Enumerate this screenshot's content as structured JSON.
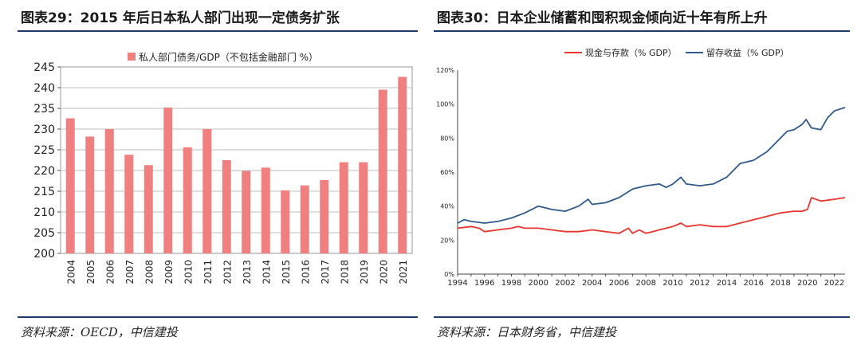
{
  "left": {
    "title": "图表29：2015 年后日本私人部门出现一定债务扩张",
    "source": "资料来源：OECD，中信建投"
  },
  "right": {
    "title": "图表30：日本企业储蓄和囤积现金倾向近十年有所上升",
    "source": "资料来源：日本财务省，中信建投"
  },
  "colors": {
    "bar": "#f08080",
    "red_line": "#e8352e",
    "blue_line": "#2f5a8c",
    "rule": "#1f3a68"
  },
  "chart_data": [
    {
      "type": "bar",
      "title": "",
      "legend": [
        "私人部门债务/GDP（不包括金融部门 %）"
      ],
      "categories": [
        "2004",
        "2005",
        "2006",
        "2007",
        "2008",
        "2009",
        "2010",
        "2011",
        "2012",
        "2013",
        "2014",
        "2015",
        "2016",
        "2017",
        "2018",
        "2019",
        "2020",
        "2021"
      ],
      "values": [
        232.6,
        228.2,
        230.0,
        223.8,
        221.3,
        235.2,
        225.6,
        230.0,
        222.5,
        219.9,
        220.7,
        215.2,
        216.4,
        217.7,
        222.0,
        222.0,
        239.5,
        242.6
      ],
      "yticks": [
        "200",
        "205",
        "210",
        "215",
        "220",
        "225",
        "230",
        "235",
        "240",
        "245"
      ],
      "ylim": [
        200,
        245
      ]
    },
    {
      "type": "line",
      "title": "",
      "legend": [
        "现金与存款（% GDP）",
        "留存收益（% GDP）"
      ],
      "xticks": [
        "1994",
        "1996",
        "1998",
        "2000",
        "2002",
        "2004",
        "2006",
        "2008",
        "2010",
        "2012",
        "2014",
        "2016",
        "2018",
        "2020",
        "2022"
      ],
      "yticks": [
        "0%",
        "20%",
        "40%",
        "60%",
        "80%",
        "100%",
        "120%"
      ],
      "xlim": [
        1994,
        2022.8
      ],
      "ylim": [
        0,
        120
      ],
      "series": [
        {
          "name": "现金与存款（% GDP）",
          "x": [
            1994,
            1995,
            1995.6,
            1996,
            1997,
            1998,
            1998.5,
            1999,
            2000,
            2001,
            2002,
            2003,
            2004,
            2005,
            2006,
            2006.7,
            2007,
            2007.5,
            2008,
            2008.5,
            2009,
            2010,
            2010.6,
            2011,
            2012,
            2013,
            2014,
            2015,
            2016,
            2017,
            2018,
            2019,
            2019.6,
            2020,
            2020.3,
            2021,
            2022,
            2022.8
          ],
          "y": [
            27,
            28,
            27,
            25,
            26,
            27,
            28,
            27,
            27,
            26,
            25,
            25,
            26,
            25,
            24,
            27,
            24,
            26,
            24,
            25,
            26,
            28,
            30,
            28,
            29,
            28,
            28,
            30,
            32,
            34,
            36,
            37,
            37,
            38,
            45,
            43,
            44,
            45
          ]
        },
        {
          "name": "留存收益（% GDP）",
          "x": [
            1994,
            1994.5,
            1995,
            1996,
            1997,
            1998,
            1999,
            2000,
            2000.5,
            2001,
            2002,
            2003,
            2003.7,
            2004,
            2005,
            2006,
            2006.8,
            2007,
            2008,
            2009,
            2009.5,
            2010,
            2010.6,
            2011,
            2012,
            2013,
            2014,
            2015,
            2016,
            2017,
            2018,
            2018.5,
            2019,
            2019.6,
            2019.9,
            2020.3,
            2021,
            2021.5,
            2022,
            2022.8
          ],
          "y": [
            30,
            32,
            31,
            30,
            31,
            33,
            36,
            40,
            39,
            38,
            37,
            40,
            44,
            41,
            42,
            45,
            49,
            50,
            52,
            53,
            51,
            53,
            57,
            53,
            52,
            53,
            57,
            65,
            67,
            72,
            80,
            84,
            85,
            88,
            91,
            86,
            85,
            92,
            96,
            98
          ]
        }
      ]
    }
  ]
}
